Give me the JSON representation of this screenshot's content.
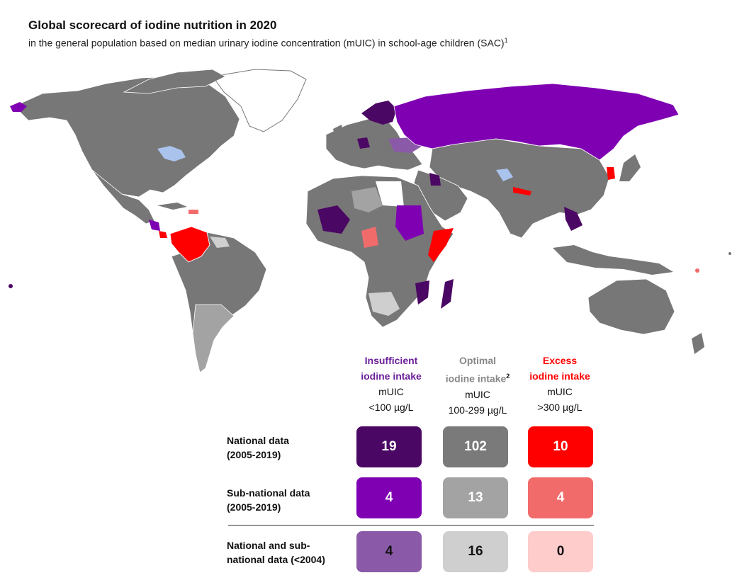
{
  "header": {
    "title": "Global scorecard of iodine nutrition in 2020",
    "subtitle": "in the general population based on median urinary iodine concentration (mUIC) in school-age children (SAC)",
    "subtitle_footnote": "1"
  },
  "colors": {
    "insufficient_national": "#4b0764",
    "insufficient_subnational": "#7f00b2",
    "insufficient_old": "#8a5aa8",
    "optimal_national": "#7a7a7a",
    "optimal_subnational": "#a3a3a3",
    "optimal_old": "#cfcfcf",
    "excess_national": "#ff0000",
    "excess_subnational": "#f26b6b",
    "excess_old": "#ffcccc",
    "no_data": "#ffffff",
    "water_body": "#a9c3ec",
    "insufficient_text": "#6b1f9a",
    "optimal_text": "#888888",
    "excess_text": "#ff0000"
  },
  "legend": {
    "columns": [
      {
        "heading_line1": "Insufficient",
        "heading_line2": "iodine intake",
        "footnote": "",
        "metric": "mUIC",
        "range": "<100 µg/L"
      },
      {
        "heading_line1": "Optimal",
        "heading_line2": "iodine intake",
        "footnote": "2",
        "metric": "mUIC",
        "range": "100-299 µg/L"
      },
      {
        "heading_line1": "Excess",
        "heading_line2": "iodine intake",
        "footnote": "",
        "metric": "mUIC",
        "range": ">300 µg/L"
      }
    ],
    "rows": [
      {
        "label_line1": "National data",
        "label_line2": "(2005-2019)",
        "values": [
          "19",
          "102",
          "10"
        ]
      },
      {
        "label_line1": "Sub-national data",
        "label_line2": "(2005-2019)",
        "values": [
          "4",
          "13",
          "4"
        ]
      },
      {
        "label_line1": "National and sub-",
        "label_line2": "national data (<2004)",
        "values": [
          "4",
          "16",
          "0"
        ]
      }
    ]
  }
}
